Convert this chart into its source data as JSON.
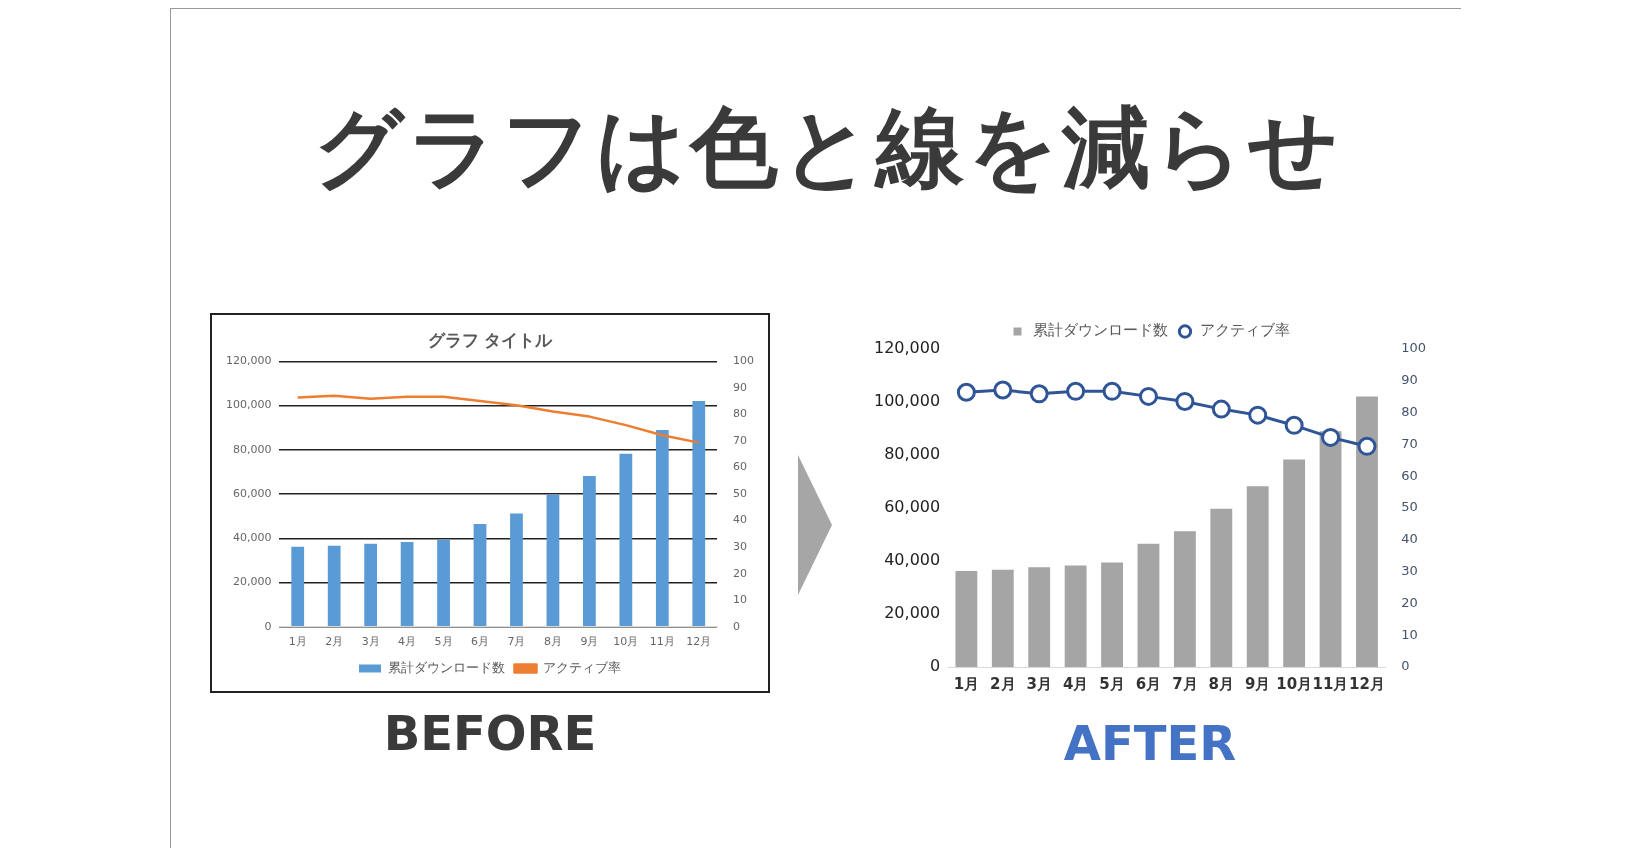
{
  "chart_data": [
    {
      "type": "other",
      "title": "グラフは色と線を減らせ"
    },
    {
      "type": "bar",
      "title": "グラフ タイトル",
      "categories": [
        "1月",
        "2月",
        "3月",
        "4月",
        "5月",
        "6月",
        "7月",
        "8月",
        "9月",
        "10月",
        "11月",
        "12月"
      ],
      "series": [
        {
          "name": "累計ダウンロード数",
          "type": "bar",
          "color": "#5b9bd5",
          "values": [
            36200,
            36700,
            37600,
            38300,
            39400,
            46500,
            51200,
            59700,
            68200,
            78300,
            89000,
            102100
          ]
        },
        {
          "name": "アクティブ率",
          "type": "line",
          "axis": "y2",
          "color": "#ed7d31",
          "values": [
            86.4,
            87.1,
            85.9,
            86.7,
            86.7,
            85.1,
            83.5,
            81.1,
            79.2,
            76.0,
            72.2,
            69.4
          ]
        }
      ],
      "ylim": [
        0,
        120000
      ],
      "yticks": [
        {
          "value": 0,
          "label": "0"
        },
        {
          "value": 20000,
          "label": "20,000"
        },
        {
          "value": 40000,
          "label": "40,000"
        },
        {
          "value": 60000,
          "label": "60,000"
        },
        {
          "value": 80000,
          "label": "80,000"
        },
        {
          "value": 100000,
          "label": "100,000"
        },
        {
          "value": 120000,
          "label": "120,000"
        }
      ],
      "y2lim": [
        0,
        100
      ],
      "y2ticks": [
        0,
        10,
        20,
        30,
        40,
        50,
        60,
        70,
        80,
        90,
        100
      ],
      "grid": "y",
      "legend": "bottom",
      "marker": "none",
      "annotations": [
        "BEFORE"
      ]
    },
    {
      "type": "bar",
      "categories": [
        "1月",
        "2月",
        "3月",
        "4月",
        "5月",
        "6月",
        "7月",
        "8月",
        "9月",
        "10月",
        "11月",
        "12月"
      ],
      "series": [
        {
          "name": "累計ダウンロード数",
          "type": "bar",
          "color": "#a5a5a5",
          "values": [
            36200,
            36700,
            37600,
            38300,
            39400,
            46500,
            51200,
            59700,
            68200,
            78300,
            89000,
            102100
          ]
        },
        {
          "name": "アクティブ率",
          "type": "line",
          "axis": "y2",
          "color": "#2f5597",
          "values": [
            86.4,
            87.1,
            85.9,
            86.7,
            86.7,
            85.1,
            83.5,
            81.1,
            79.2,
            76.0,
            72.2,
            69.4
          ]
        }
      ],
      "ylim": [
        0,
        120000
      ],
      "yticks": [
        {
          "value": 0,
          "label": "0"
        },
        {
          "value": 20000,
          "label": "20,000"
        },
        {
          "value": 40000,
          "label": "40,000"
        },
        {
          "value": 60000,
          "label": "60,000"
        },
        {
          "value": 80000,
          "label": "80,000"
        },
        {
          "value": 100000,
          "label": "100,000"
        },
        {
          "value": 120000,
          "label": "120,000"
        }
      ],
      "y2lim": [
        0,
        100
      ],
      "y2ticks": [
        0,
        10,
        20,
        30,
        40,
        50,
        60,
        70,
        80,
        90,
        100
      ],
      "grid": false,
      "legend": "top",
      "marker": "circle",
      "annotations": [
        "AFTER"
      ]
    }
  ]
}
